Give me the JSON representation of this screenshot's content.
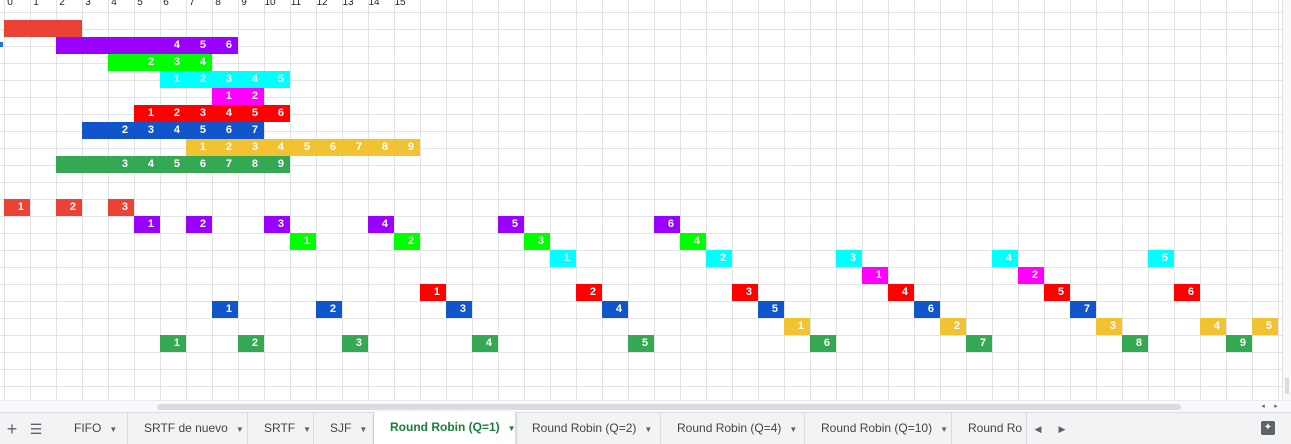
{
  "header_numbers": [
    "0",
    "1",
    "2",
    "3",
    "4",
    "5",
    "6",
    "7",
    "8",
    "9",
    "10",
    "11",
    "12",
    "13",
    "14",
    "15"
  ],
  "colors": {
    "p1": "#ea4335",
    "p2": "#9900ff",
    "p3": "#00ff00",
    "p4": "#00ffff",
    "p5": "#ff00ff",
    "p6": "#ff0000",
    "p7": "#1155cc",
    "p8": "#f1c232",
    "p9": "#34a853"
  },
  "top_rows": [
    {
      "color": "p1",
      "start": 0,
      "labels": [
        "",
        "",
        ""
      ]
    },
    {
      "color": "p2",
      "start": 2,
      "labels": [
        "",
        "",
        "",
        "",
        "4",
        "5",
        "6"
      ]
    },
    {
      "color": "p3",
      "start": 4,
      "labels": [
        "",
        "2",
        "3",
        "4"
      ]
    },
    {
      "color": "p4",
      "start": 6,
      "labels": [
        "1",
        "2",
        "3",
        "4",
        "5"
      ]
    },
    {
      "color": "p5",
      "start": 8,
      "labels": [
        "1",
        "2"
      ]
    },
    {
      "color": "p6",
      "start": 5,
      "labels": [
        "1",
        "2",
        "3",
        "4",
        "5",
        "6"
      ]
    },
    {
      "color": "p7",
      "start": 3,
      "labels": [
        "",
        "2",
        "3",
        "4",
        "5",
        "6",
        "7"
      ]
    },
    {
      "color": "p8",
      "start": 7,
      "labels": [
        "1",
        "2",
        "3",
        "4",
        "5",
        "6",
        "7",
        "8",
        "9"
      ]
    },
    {
      "color": "p9",
      "start": 2,
      "labels": [
        "",
        "",
        "3",
        "4",
        "5",
        "6",
        "7",
        "8",
        "9"
      ]
    }
  ],
  "bottom_rows": [
    {
      "color": "p1",
      "cells": [
        [
          0,
          "1"
        ],
        [
          2,
          "2"
        ],
        [
          4,
          "3"
        ]
      ]
    },
    {
      "color": "p2",
      "cells": [
        [
          5,
          "1"
        ],
        [
          7,
          "2"
        ],
        [
          10,
          "3"
        ],
        [
          14,
          "4"
        ],
        [
          19,
          "5"
        ],
        [
          25,
          "6"
        ]
      ]
    },
    {
      "color": "p3",
      "cells": [
        [
          11,
          "1"
        ],
        [
          15,
          "2"
        ],
        [
          20,
          "3"
        ],
        [
          26,
          "4"
        ]
      ]
    },
    {
      "color": "p4",
      "cells": [
        [
          21,
          "1"
        ],
        [
          27,
          "2"
        ],
        [
          32,
          "3"
        ],
        [
          38,
          "4"
        ],
        [
          44,
          "5"
        ]
      ]
    },
    {
      "color": "p5",
      "cells": [
        [
          33,
          "1"
        ],
        [
          39,
          "2"
        ]
      ]
    },
    {
      "color": "p6",
      "cells": [
        [
          16,
          "1"
        ],
        [
          22,
          "2"
        ],
        [
          28,
          "3"
        ],
        [
          34,
          "4"
        ],
        [
          40,
          "5"
        ],
        [
          45,
          "6"
        ]
      ]
    },
    {
      "color": "p7",
      "cells": [
        [
          8,
          "1"
        ],
        [
          12,
          "2"
        ],
        [
          17,
          "3"
        ],
        [
          23,
          "4"
        ],
        [
          29,
          "5"
        ],
        [
          35,
          "6"
        ],
        [
          41,
          "7"
        ]
      ]
    },
    {
      "color": "p8",
      "cells": [
        [
          30,
          "1"
        ],
        [
          36,
          "2"
        ],
        [
          42,
          "3"
        ],
        [
          46,
          "4"
        ],
        [
          48,
          "5"
        ]
      ]
    },
    {
      "color": "p9",
      "cells": [
        [
          6,
          "1"
        ],
        [
          9,
          "2"
        ],
        [
          13,
          "3"
        ],
        [
          18,
          "4"
        ],
        [
          24,
          "5"
        ],
        [
          31,
          "6"
        ],
        [
          37,
          "7"
        ],
        [
          43,
          "8"
        ],
        [
          47,
          "9"
        ]
      ]
    }
  ],
  "sheet_tabs": [
    {
      "label": "FIFO",
      "active": false
    },
    {
      "label": "SRTF de nuevo",
      "active": false
    },
    {
      "label": "SRTF",
      "active": false
    },
    {
      "label": "SJF",
      "active": false
    },
    {
      "label": "Round Robin (Q=1)",
      "active": true
    },
    {
      "label": "Round Robin (Q=2)",
      "active": false
    },
    {
      "label": "Round Robin (Q=4)",
      "active": false
    },
    {
      "label": "Round Robin (Q=10)",
      "active": false
    },
    {
      "label": "Round Ro",
      "active": false
    }
  ],
  "icons": {
    "add_sheet": "plus-icon",
    "all_sheets": "menu-icon",
    "scroll_left": "chevron-left-icon",
    "scroll_right": "chevron-right-icon",
    "explore": "explore-icon"
  }
}
